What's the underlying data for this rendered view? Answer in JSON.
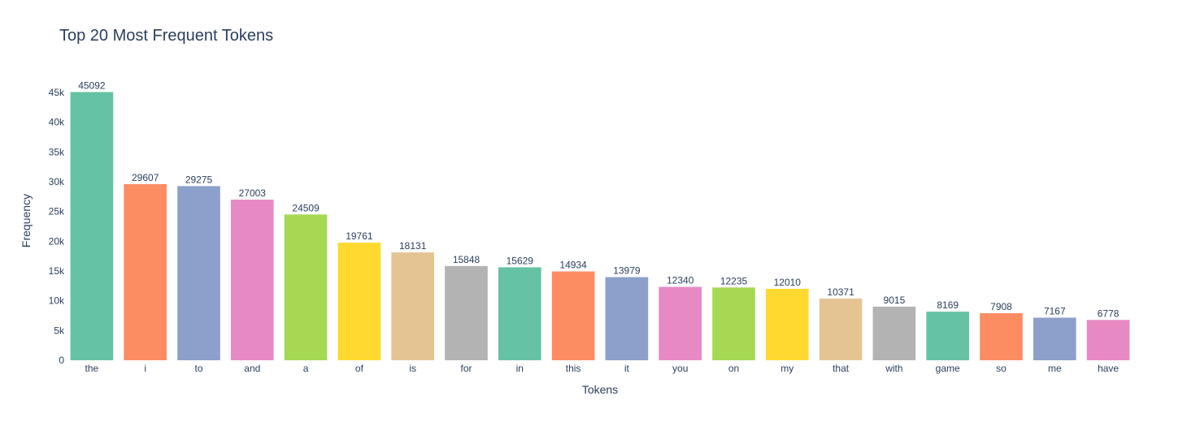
{
  "chart_data": {
    "type": "bar",
    "title": "Top 20 Most Frequent Tokens",
    "xlabel": "Tokens",
    "ylabel": "Frequency",
    "ylim": [
      0,
      47467
    ],
    "yticks": [
      0,
      5000,
      10000,
      15000,
      20000,
      25000,
      30000,
      35000,
      40000,
      45000
    ],
    "ytick_labels": [
      "0",
      "5k",
      "10k",
      "15k",
      "20k",
      "25k",
      "30k",
      "35k",
      "40k",
      "45k"
    ],
    "grid": false,
    "categories": [
      "the",
      "i",
      "to",
      "and",
      "a",
      "of",
      "is",
      "for",
      "in",
      "this",
      "it",
      "you",
      "on",
      "my",
      "that",
      "with",
      "game",
      "so",
      "me",
      "have"
    ],
    "values": [
      45092,
      29607,
      29275,
      27003,
      24509,
      19761,
      18131,
      15848,
      15629,
      14934,
      13979,
      12340,
      12235,
      12010,
      10371,
      9015,
      8169,
      7908,
      7167,
      6778
    ],
    "data_labels": [
      "45092",
      "29607",
      "29275",
      "27003",
      "24509",
      "19761",
      "18131",
      "15848",
      "15629",
      "14934",
      "13979",
      "12340",
      "12235",
      "12010",
      "10371",
      "9015",
      "8169",
      "7908",
      "7167",
      "6778"
    ],
    "colors": [
      "#66c2a5",
      "#fc8d62",
      "#8da0cb",
      "#e78ac3",
      "#a6d854",
      "#ffd92f",
      "#e5c494",
      "#b3b3b3"
    ]
  }
}
